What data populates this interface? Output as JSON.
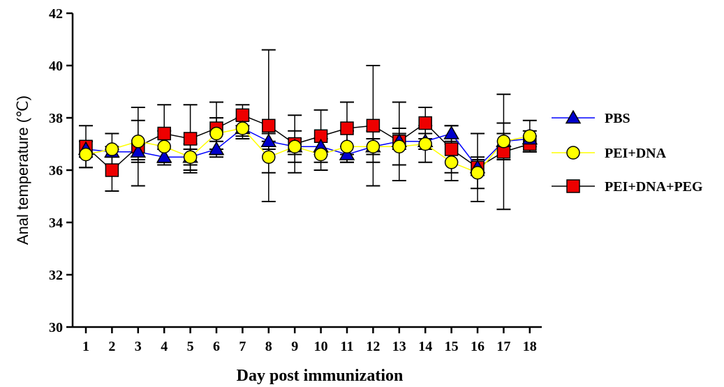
{
  "chart_data": {
    "type": "line",
    "title": "",
    "xlabel": "Day post immunization",
    "ylabel": "Anal temperature (℃)",
    "x": [
      1,
      2,
      3,
      4,
      5,
      6,
      7,
      8,
      9,
      10,
      11,
      12,
      13,
      14,
      15,
      16,
      17,
      18
    ],
    "ylim": [
      30,
      42
    ],
    "yticks": [
      30,
      32,
      34,
      36,
      38,
      40,
      42
    ],
    "grid": false,
    "legend_position": "right",
    "series": [
      {
        "name": "PBS",
        "color": "#0000cc",
        "line_color": "#0000ff",
        "marker": "triangle",
        "values": [
          36.8,
          36.7,
          36.7,
          36.5,
          36.5,
          36.8,
          37.6,
          37.1,
          36.9,
          36.9,
          36.6,
          36.9,
          37.1,
          37.1,
          37.4,
          36.1,
          37.1,
          37.2
        ],
        "errors": [
          0.3,
          0.2,
          0.3,
          0.3,
          0.3,
          0.3,
          0.3,
          0.3,
          0.3,
          0.3,
          0.3,
          0.3,
          0.3,
          0.3,
          0.3,
          0.3,
          0.3,
          0.3
        ]
      },
      {
        "name": "PEI+DNA",
        "color": "#ffff00",
        "line_color": "#ffff00",
        "marker": "circle",
        "values": [
          36.6,
          36.8,
          37.1,
          36.9,
          36.5,
          37.4,
          37.6,
          36.5,
          36.9,
          36.6,
          36.9,
          36.9,
          36.9,
          37.0,
          36.3,
          35.9,
          37.1,
          37.3
        ],
        "errors": [
          0.5,
          0.6,
          0.8,
          0.6,
          0.5,
          0.6,
          0.4,
          0.6,
          0.6,
          0.6,
          0.6,
          0.6,
          0.7,
          0.7,
          0.7,
          0.6,
          0.7,
          0.6
        ]
      },
      {
        "name": "PEI+DNA+PEG",
        "color": "#ee0000",
        "line_color": "#000000",
        "marker": "square",
        "values": [
          36.9,
          36.0,
          36.9,
          37.4,
          37.2,
          37.6,
          38.1,
          37.7,
          37.0,
          37.3,
          37.6,
          37.7,
          37.1,
          37.8,
          36.8,
          36.1,
          36.7,
          37.0
        ],
        "errors": [
          0.8,
          0.8,
          1.5,
          1.1,
          1.3,
          1.0,
          0.4,
          2.9,
          1.1,
          1.0,
          1.0,
          2.3,
          1.5,
          0.6,
          0.9,
          1.3,
          2.2,
          0.3
        ]
      }
    ]
  }
}
